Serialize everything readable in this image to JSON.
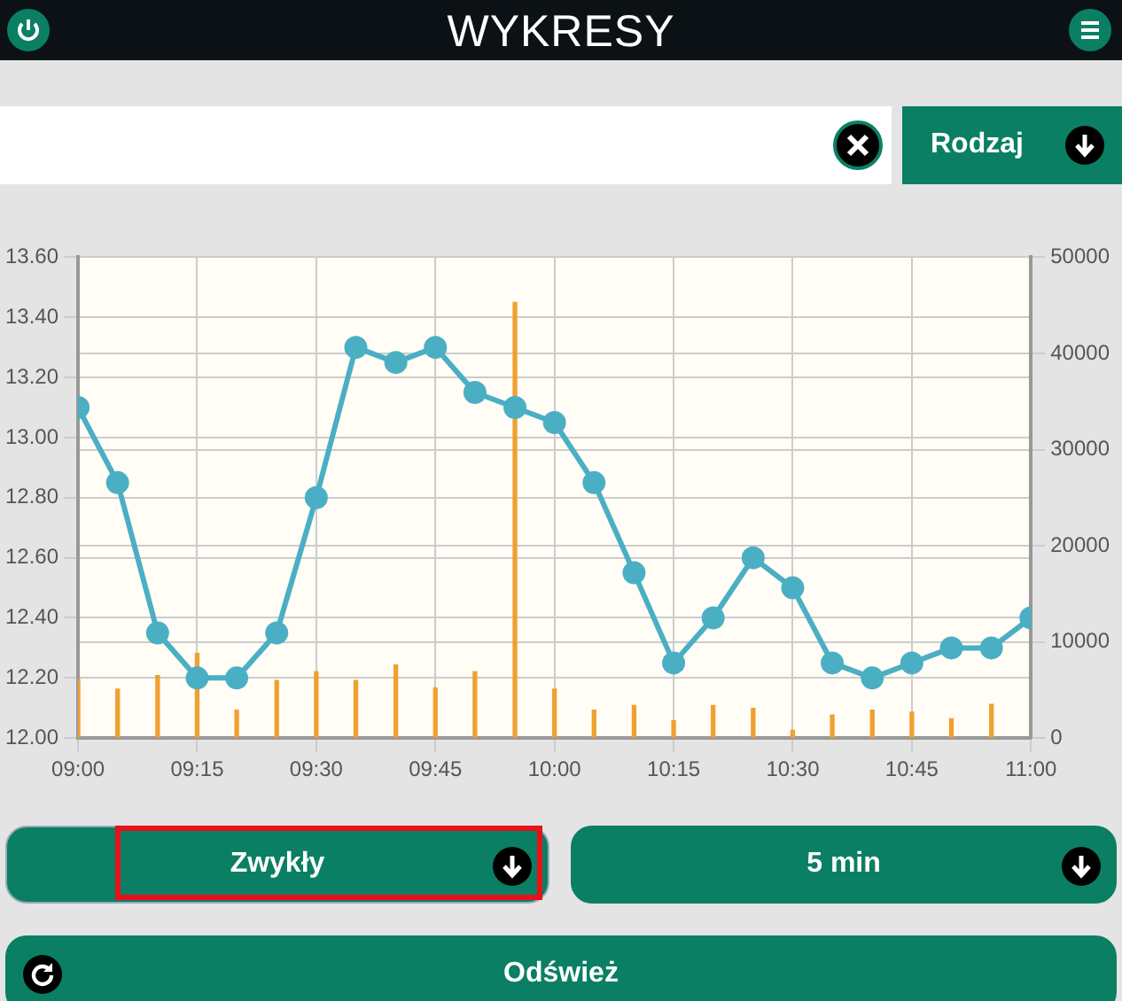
{
  "chart_data": {
    "type": "line",
    "title": "WYKRESY",
    "x": [
      9,
      9.083,
      9.167,
      9.25,
      9.333,
      9.417,
      9.5,
      9.583,
      9.667,
      9.75,
      9.833,
      9.917,
      10,
      10.083,
      10.167,
      10.25,
      10.333,
      10.417,
      10.5,
      10.583,
      10.667,
      10.75,
      10.833,
      10.917,
      11
    ],
    "series": [
      {
        "color": "#4bafc4",
        "values": [
          13.1,
          12.85,
          12.35,
          12.2,
          12.2,
          12.35,
          12.8,
          13.3,
          13.25,
          13.3,
          13.15,
          13.1,
          13.05,
          12.85,
          12.55,
          12.25,
          12.4,
          12.6,
          12.5,
          12.25,
          12.2,
          12.25,
          12.3,
          12.3,
          12.4
        ]
      },
      {
        "type": "bar",
        "axis": "y2",
        "color": "#f0a030",
        "x": [
          9,
          9.083,
          9.167,
          9.25,
          9.333,
          9.417,
          9.5,
          9.583,
          9.667,
          9.75,
          9.833,
          9.917,
          10,
          10.083,
          10.167,
          10.25,
          10.333,
          10.417,
          10.5,
          10.583,
          10.667,
          10.75,
          10.833,
          10.917
        ],
        "values": [
          6100,
          5100,
          6500,
          8800,
          2900,
          6000,
          6900,
          6000,
          7600,
          5200,
          6900,
          45300,
          5100,
          2900,
          3400,
          1800,
          3400,
          3100,
          800,
          2400,
          2900,
          2700,
          2000,
          3500
        ]
      }
    ],
    "xlim": [
      9,
      11
    ],
    "xticks": [
      {
        "value": 9,
        "label": "09:00"
      },
      {
        "value": 9.25,
        "label": "09:15"
      },
      {
        "value": 9.5,
        "label": "09:30"
      },
      {
        "value": 9.75,
        "label": "09:45"
      },
      {
        "value": 10,
        "label": "10:00"
      },
      {
        "value": 10.25,
        "label": "10:15"
      },
      {
        "value": 10.5,
        "label": "10:30"
      },
      {
        "value": 10.75,
        "label": "10:45"
      },
      {
        "value": 11,
        "label": "11:00"
      }
    ],
    "ylim": [
      12,
      13.6
    ],
    "yticks": [
      {
        "value": 12,
        "label": "12.00"
      },
      {
        "value": 12.2,
        "label": "12.20"
      },
      {
        "value": 12.4,
        "label": "12.40"
      },
      {
        "value": 12.6,
        "label": "12.60"
      },
      {
        "value": 12.8,
        "label": "12.80"
      },
      {
        "value": 13,
        "label": "13.00"
      },
      {
        "value": 13.2,
        "label": "13.20"
      },
      {
        "value": 13.4,
        "label": "13.40"
      },
      {
        "value": 13.6,
        "label": "13.60"
      }
    ],
    "y2lim": [
      0,
      50000
    ],
    "y2ticks": [
      0,
      10000,
      20000,
      30000,
      40000,
      50000
    ],
    "grid": true,
    "legend": false,
    "marker": "circle",
    "annotations": [
      "Rodzaj",
      "Zwykły",
      "5 min",
      "Odśwież"
    ]
  }
}
